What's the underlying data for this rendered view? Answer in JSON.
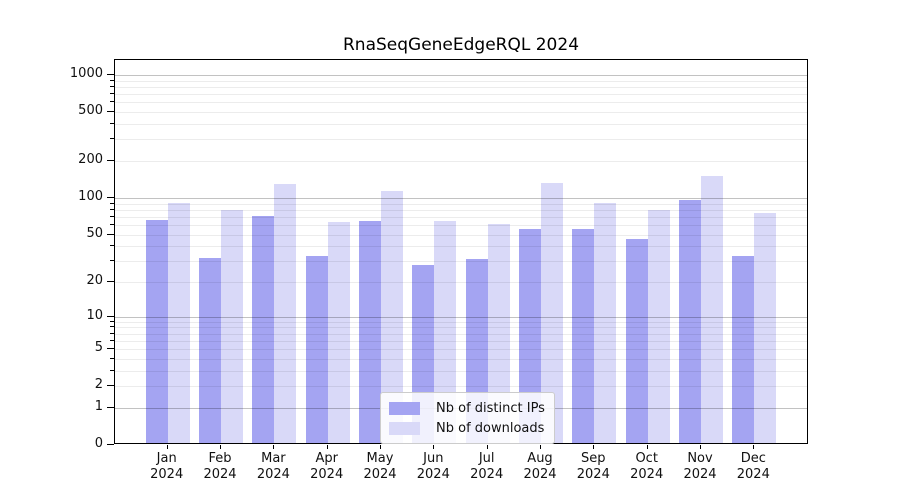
{
  "chart_data": {
    "type": "bar",
    "title": "RnaSeqGeneEdgeRQL 2024",
    "x_year": "2024",
    "categories": [
      "Jan",
      "Feb",
      "Mar",
      "Apr",
      "May",
      "Jun",
      "Jul",
      "Aug",
      "Sep",
      "Oct",
      "Nov",
      "Dec"
    ],
    "series": [
      {
        "name": "Nb of distinct IPs",
        "color": "#a4a4f2",
        "values": [
          66,
          32,
          71,
          33,
          65,
          28,
          31,
          56,
          56,
          46,
          97,
          33
        ]
      },
      {
        "name": "Nb of downloads",
        "color": "#d9d9f8",
        "values": [
          91,
          79,
          130,
          63,
          114,
          65,
          61,
          133,
          91,
          80,
          152,
          75
        ]
      }
    ],
    "yticks": [
      1000,
      500,
      200,
      100,
      50,
      20,
      10,
      5,
      2,
      1,
      0
    ],
    "y_scale": "log10(1+y)",
    "ylim": [
      0,
      1300
    ],
    "grid": {
      "orientation": "horizontal",
      "minor_color": "#ececec",
      "major_color": "#c3c3c3",
      "major_at": [
        1,
        10,
        100,
        1000
      ]
    },
    "legend_position": "lower center inside plot"
  }
}
